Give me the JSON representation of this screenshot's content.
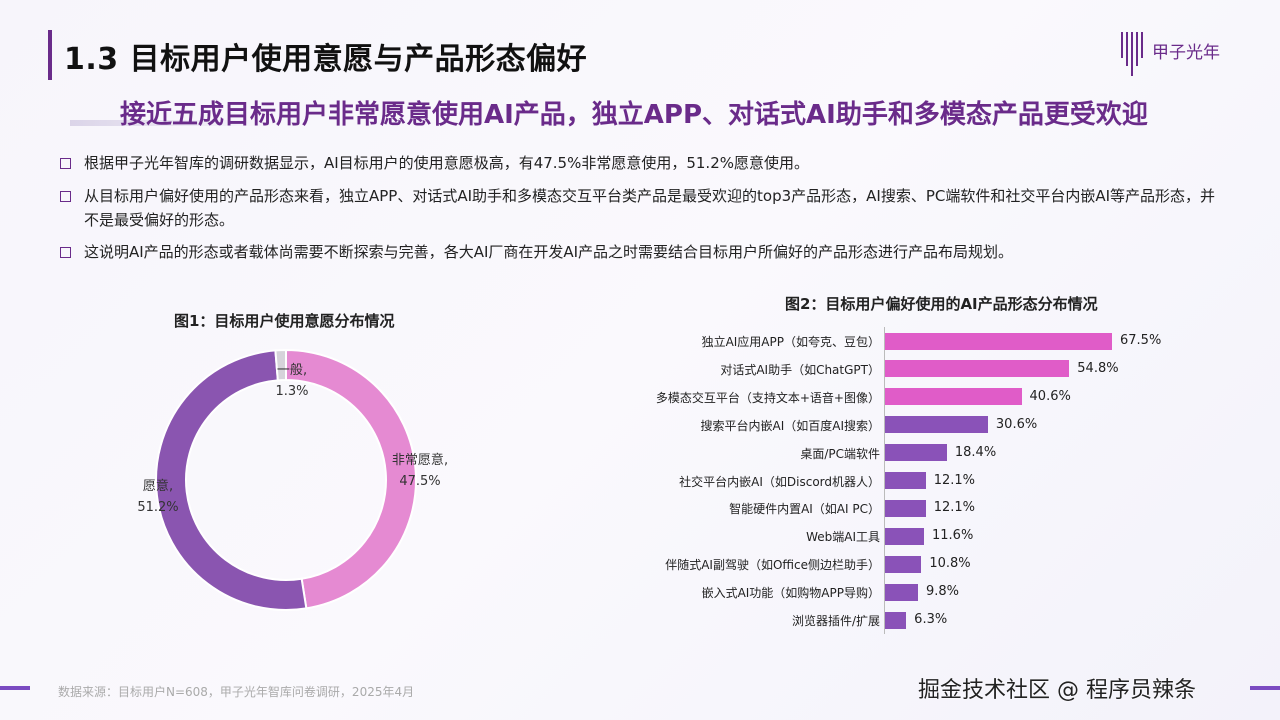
{
  "header": {
    "title": "1.3 目标用户使用意愿与产品形态偏好",
    "logo_text": "甲子光年",
    "subtitle": "接近五成目标用户非常愿意使用AI产品，独立APP、对话式AI助手和多模态产品更受欢迎"
  },
  "bullets": [
    "根据甲子光年智库的调研数据显示，AI目标用户的使用意愿极高，有47.5%非常愿意使用，51.2%愿意使用。",
    "从目标用户偏好使用的产品形态来看，独立APP、对话式AI助手和多模态交互平台类产品是最受欢迎的top3产品形态，AI搜索、PC端软件和社交平台内嵌AI等产品形态，并不是最受偏好的形态。",
    "这说明AI产品的形态或者载体尚需要不断探索与完善，各大AI厂商在开发AI产品之时需要结合目标用户所偏好的产品形态进行产品布局规划。"
  ],
  "footer": {
    "source": "数据来源：目标用户N=608，甲子光年智库问卷调研，2025年4月",
    "watermark": "掘金技术社区 @ 程序员辣条"
  },
  "chart_data": [
    {
      "type": "pie",
      "title": "图1：目标用户使用意愿分布情况",
      "donut": true,
      "slices": [
        {
          "name": "非常愿意",
          "value": 47.5,
          "label": "47.5%",
          "color": "#e58ad2"
        },
        {
          "name": "愿意",
          "value": 51.2,
          "label": "51.2%",
          "color": "#8a55b0"
        },
        {
          "name": "一般",
          "value": 1.3,
          "label": "1.3%",
          "color": "#d6d3da"
        }
      ]
    },
    {
      "type": "bar",
      "orientation": "horizontal",
      "title": "图2：目标用户偏好使用的AI产品形态分布情况",
      "categories": [
        "独立AI应用APP（如夸克、豆包）",
        "对话式AI助手（如ChatGPT）",
        "多模态交互平台（支持文本+语音+图像）",
        "搜索平台内嵌AI（如百度AI搜索）",
        "桌面/PC端软件",
        "社交平台内嵌AI（如Discord机器人）",
        "智能硬件内置AI（如AI PC）",
        "Web端AI工具",
        "伴随式AI副驾驶（如Office侧边栏助手）",
        "嵌入式AI功能（如购物APP导购）",
        "浏览器插件/扩展"
      ],
      "values": [
        67.5,
        54.8,
        40.6,
        30.6,
        18.4,
        12.1,
        12.1,
        11.6,
        10.8,
        9.8,
        6.3
      ],
      "labels": [
        "67.5%",
        "54.8%",
        "40.6%",
        "30.6%",
        "18.4%",
        "12.1%",
        "12.1%",
        "11.6%",
        "10.8%",
        "9.8%",
        "6.3%"
      ],
      "colors": {
        "top": "#e05cc8",
        "rest": "#8a52b8"
      },
      "highlight_top_n": 3,
      "xlim": [
        0,
        70
      ]
    }
  ]
}
